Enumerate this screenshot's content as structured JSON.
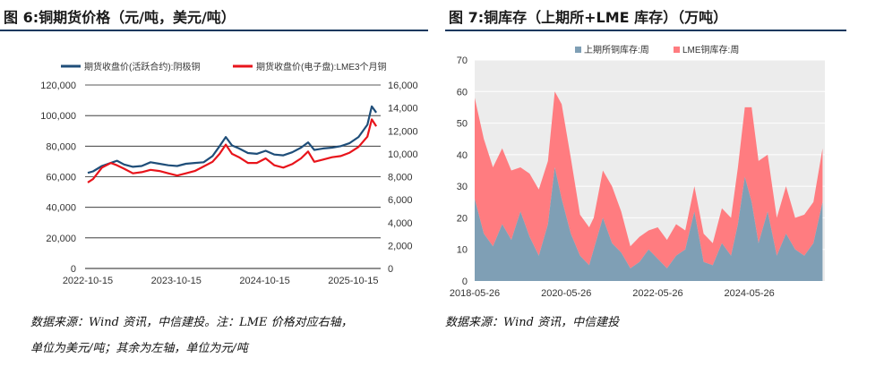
{
  "left": {
    "title": "图 6:铜期货价格（元/吨，美元/吨）",
    "source_line1": "数据来源：Wind 资讯，中信建投。注：LME 价格对应右轴，",
    "source_line2": "单位为美元/吨；其余为左轴，单位为元/吨"
  },
  "right": {
    "title": "图 7:铜库存（上期所+LME 库存）（万吨）",
    "source_line1": "数据来源：Wind 资讯，中信建投"
  },
  "colors": {
    "shfe_line": "#1f4e79",
    "lme_line": "#e8141b",
    "shfe_area": "#7f9fb5",
    "lme_area": "#ff7c80",
    "rule": "#14375e"
  },
  "chart_data": [
    {
      "type": "line",
      "legend": [
        "期货收盘价(活跃合约):阴极铜",
        "期货收盘价(电子盘):LME3个月铜"
      ],
      "xticklabels": [
        "2022-10-15",
        "2023-10-15",
        "2024-10-15",
        "2025-10-15"
      ],
      "yticks_left": [
        "0",
        "20,000",
        "40,000",
        "60,000",
        "80,000",
        "100,000",
        "120,000"
      ],
      "yticks_right": [
        "0",
        "2,000",
        "4,000",
        "6,000",
        "8,000",
        "10,000",
        "12,000",
        "14,000",
        "16,000"
      ],
      "ylim_left": [
        0,
        120000
      ],
      "ylim_right": [
        0,
        16000
      ],
      "xlim": [
        2022.76,
        2026.1
      ],
      "series": [
        {
          "name": "期货收盘价(活跃合约):阴极铜",
          "axis": "left",
          "x": [
            2022.79,
            2022.85,
            2022.95,
            2023.05,
            2023.12,
            2023.2,
            2023.3,
            2023.4,
            2023.5,
            2023.6,
            2023.7,
            2023.8,
            2023.9,
            2024.0,
            2024.1,
            2024.2,
            2024.28,
            2024.35,
            2024.42,
            2024.5,
            2024.6,
            2024.7,
            2024.8,
            2024.9,
            2025.0,
            2025.1,
            2025.2,
            2025.28,
            2025.35,
            2025.45,
            2025.55,
            2025.65,
            2025.75,
            2025.85,
            2025.95,
            2026.0,
            2026.05
          ],
          "y": [
            62500,
            63500,
            67000,
            69000,
            70500,
            68000,
            66500,
            67000,
            69500,
            68500,
            67500,
            67000,
            68500,
            69000,
            69500,
            73500,
            80000,
            86000,
            80500,
            78500,
            75500,
            75000,
            77000,
            74500,
            74000,
            76000,
            79000,
            82500,
            77500,
            78500,
            79000,
            80000,
            82000,
            86000,
            94000,
            106000,
            102000
          ]
        },
        {
          "name": "期货收盘价(电子盘):LME3个月铜",
          "axis": "right",
          "x": [
            2022.79,
            2022.85,
            2022.95,
            2023.05,
            2023.12,
            2023.2,
            2023.3,
            2023.4,
            2023.5,
            2023.6,
            2023.7,
            2023.8,
            2023.9,
            2024.0,
            2024.1,
            2024.2,
            2024.28,
            2024.35,
            2024.42,
            2024.5,
            2024.6,
            2024.7,
            2024.8,
            2024.9,
            2025.0,
            2025.1,
            2025.2,
            2025.28,
            2025.35,
            2025.45,
            2025.55,
            2025.65,
            2025.75,
            2025.85,
            2025.95,
            2026.0,
            2026.05
          ],
          "y": [
            7500,
            7800,
            8800,
            9200,
            9000,
            8700,
            8300,
            8400,
            8600,
            8500,
            8300,
            8100,
            8300,
            8500,
            8900,
            9300,
            10000,
            10800,
            10000,
            9700,
            9200,
            9200,
            9600,
            9000,
            8800,
            9100,
            9600,
            10200,
            9300,
            9500,
            9700,
            9800,
            10100,
            10600,
            11500,
            13000,
            12400
          ]
        }
      ]
    },
    {
      "type": "area",
      "stacked": true,
      "legend": [
        "上期所铜库存:周",
        "LME铜库存:周"
      ],
      "xticklabels": [
        "2018-05-26",
        "2020-05-26",
        "2022-05-26",
        "2024-05-26"
      ],
      "yticks": [
        "0",
        "10",
        "20",
        "30",
        "40",
        "50",
        "60",
        "70"
      ],
      "ylim": [
        0,
        70
      ],
      "xlim": [
        2018.4,
        2026.05
      ],
      "series": [
        {
          "name": "上期所铜库存:周",
          "x": [
            2018.4,
            2018.6,
            2018.8,
            2019.0,
            2019.2,
            2019.4,
            2019.6,
            2019.8,
            2020.0,
            2020.15,
            2020.3,
            2020.5,
            2020.7,
            2020.9,
            2021.0,
            2021.2,
            2021.4,
            2021.6,
            2021.8,
            2022.0,
            2022.2,
            2022.4,
            2022.6,
            2022.8,
            2023.0,
            2023.2,
            2023.4,
            2023.6,
            2023.8,
            2024.0,
            2024.15,
            2024.3,
            2024.45,
            2024.6,
            2024.8,
            2025.0,
            2025.2,
            2025.4,
            2025.6,
            2025.8,
            2026.0
          ],
          "y": [
            26,
            15,
            11,
            18,
            13,
            22,
            14,
            8,
            18,
            36,
            26,
            15,
            8,
            5,
            10,
            20,
            12,
            9,
            4,
            6,
            10,
            7,
            4,
            8,
            10,
            22,
            6,
            5,
            12,
            8,
            18,
            33,
            25,
            12,
            22,
            8,
            15,
            10,
            8,
            12,
            25
          ]
        },
        {
          "name": "LME铜库存:周",
          "x": [
            2018.4,
            2018.6,
            2018.8,
            2019.0,
            2019.2,
            2019.4,
            2019.6,
            2019.8,
            2020.0,
            2020.15,
            2020.3,
            2020.5,
            2020.7,
            2020.9,
            2021.0,
            2021.2,
            2021.4,
            2021.6,
            2021.8,
            2022.0,
            2022.2,
            2022.4,
            2022.6,
            2022.8,
            2023.0,
            2023.2,
            2023.4,
            2023.6,
            2023.8,
            2024.0,
            2024.15,
            2024.3,
            2024.45,
            2024.6,
            2024.8,
            2025.0,
            2025.2,
            2025.4,
            2025.6,
            2025.8,
            2026.0
          ],
          "y": [
            32,
            30,
            25,
            24,
            22,
            14,
            20,
            21,
            20,
            24,
            30,
            24,
            13,
            12,
            10,
            15,
            18,
            13,
            7,
            8,
            6,
            10,
            9,
            10,
            6,
            8,
            9,
            7,
            11,
            12,
            18,
            22,
            30,
            26,
            18,
            12,
            15,
            10,
            13,
            13,
            17
          ]
        }
      ]
    }
  ]
}
